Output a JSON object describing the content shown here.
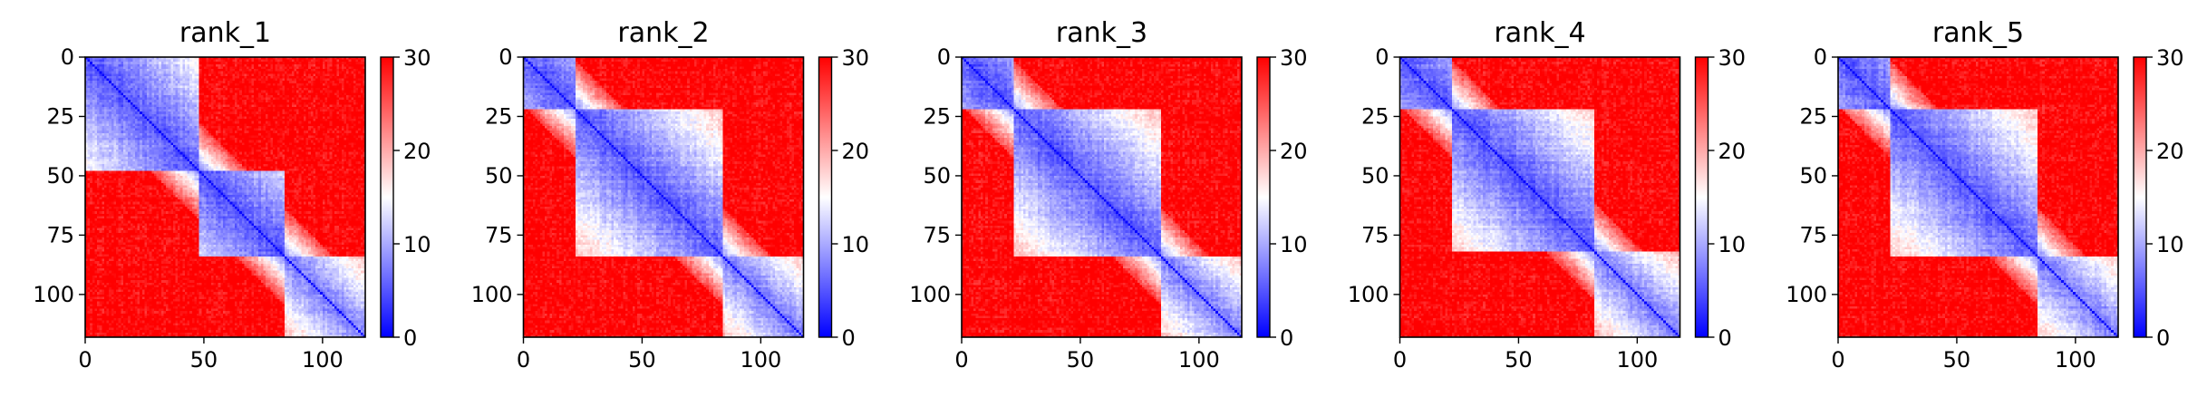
{
  "chart_data": [
    {
      "type": "heatmap",
      "title": "rank_1",
      "size": 118,
      "xticks": [
        0,
        50,
        100
      ],
      "yticks": [
        0,
        25,
        50,
        75,
        100
      ],
      "xlim": [
        0,
        118
      ],
      "ylim": [
        118,
        0
      ],
      "colorbar": {
        "vmin": 0,
        "vmax": 30,
        "ticks": [
          0,
          10,
          20,
          30
        ],
        "colors": [
          "#0000ff",
          "#ffffff",
          "#ff0000"
        ]
      },
      "domain_breaks": [
        48,
        84
      ],
      "variant": 1
    },
    {
      "type": "heatmap",
      "title": "rank_2",
      "size": 118,
      "xticks": [
        0,
        50,
        100
      ],
      "yticks": [
        0,
        25,
        50,
        75,
        100
      ],
      "xlim": [
        0,
        118
      ],
      "ylim": [
        118,
        0
      ],
      "colorbar": {
        "vmin": 0,
        "vmax": 30,
        "ticks": [
          0,
          10,
          20,
          30
        ],
        "colors": [
          "#0000ff",
          "#ffffff",
          "#ff0000"
        ]
      },
      "domain_breaks": [
        22,
        84
      ],
      "variant": 2
    },
    {
      "type": "heatmap",
      "title": "rank_3",
      "size": 118,
      "xticks": [
        0,
        50,
        100
      ],
      "yticks": [
        0,
        25,
        50,
        75,
        100
      ],
      "xlim": [
        0,
        118
      ],
      "ylim": [
        118,
        0
      ],
      "colorbar": {
        "vmin": 0,
        "vmax": 30,
        "ticks": [
          0,
          10,
          20,
          30
        ],
        "colors": [
          "#0000ff",
          "#ffffff",
          "#ff0000"
        ]
      },
      "domain_breaks": [
        22,
        84
      ],
      "variant": 3
    },
    {
      "type": "heatmap",
      "title": "rank_4",
      "size": 118,
      "xticks": [
        0,
        50,
        100
      ],
      "yticks": [
        0,
        25,
        50,
        75,
        100
      ],
      "xlim": [
        0,
        118
      ],
      "ylim": [
        118,
        0
      ],
      "colorbar": {
        "vmin": 0,
        "vmax": 30,
        "ticks": [
          0,
          10,
          20,
          30
        ],
        "colors": [
          "#0000ff",
          "#ffffff",
          "#ff0000"
        ]
      },
      "domain_breaks": [
        22,
        82
      ],
      "variant": 4
    },
    {
      "type": "heatmap",
      "title": "rank_5",
      "size": 118,
      "xticks": [
        0,
        50,
        100
      ],
      "yticks": [
        0,
        25,
        50,
        75,
        100
      ],
      "xlim": [
        0,
        118
      ],
      "ylim": [
        118,
        0
      ],
      "colorbar": {
        "vmin": 0,
        "vmax": 30,
        "ticks": [
          0,
          10,
          20,
          30
        ],
        "colors": [
          "#0000ff",
          "#ffffff",
          "#ff0000"
        ]
      },
      "domain_breaks": [
        22,
        84
      ],
      "variant": 5
    }
  ]
}
